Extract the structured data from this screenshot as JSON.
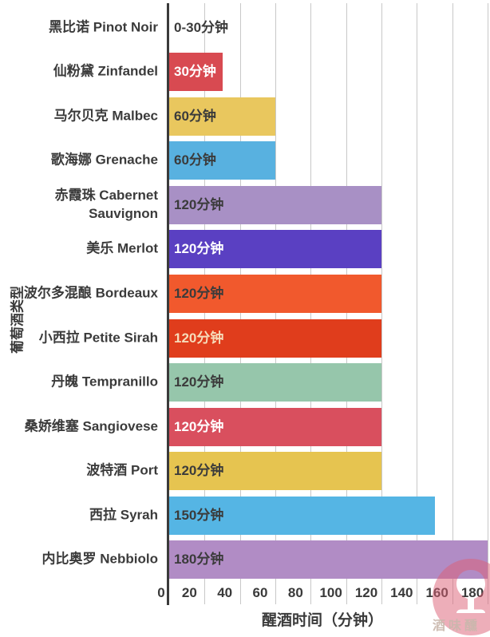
{
  "chart_data": {
    "type": "bar",
    "orientation": "horizontal",
    "xlabel": "醒酒时间（分钟）",
    "ylabel": "葡萄酒类型",
    "xlim": [
      0,
      180
    ],
    "xticks": [
      0,
      20,
      40,
      60,
      80,
      100,
      120,
      140,
      160,
      180
    ],
    "grid": true,
    "legend": "none",
    "bars": [
      {
        "category": "黑比诺 Pinot Noir",
        "value": 0,
        "value_label": "0-30分钟",
        "bar_color": "none",
        "label_color": "#3b3b3b"
      },
      {
        "category": "仙粉黛 Zinfandel",
        "value": 30,
        "value_label": "30分钟",
        "bar_color": "#d84a51",
        "label_color": "#ffffff"
      },
      {
        "category": "马尔贝克 Malbec",
        "value": 60,
        "value_label": "60分钟",
        "bar_color": "#e9c75e",
        "label_color": "#3b3b3b"
      },
      {
        "category": "歌海娜 Grenache",
        "value": 60,
        "value_label": "60分钟",
        "bar_color": "#58b1e0",
        "label_color": "#3b3b3b"
      },
      {
        "category": "赤霞珠 Cabernet\nSauvignon",
        "value": 120,
        "value_label": "120分钟",
        "bar_color": "#a890c5",
        "label_color": "#3b3b3b"
      },
      {
        "category": "美乐 Merlot",
        "value": 120,
        "value_label": "120分钟",
        "bar_color": "#5a40c2",
        "label_color": "#ffffff"
      },
      {
        "category": "波尔多混酿 Bordeaux",
        "value": 120,
        "value_label": "120分钟",
        "bar_color": "#f1592d",
        "label_color": "#3b3b3b"
      },
      {
        "category": "小西拉 Petite Sirah",
        "value": 120,
        "value_label": "120分钟",
        "bar_color": "#e03d1c",
        "label_color": "#f6dcba"
      },
      {
        "category": "丹魄 Tempranillo",
        "value": 120,
        "value_label": "120分钟",
        "bar_color": "#96c6ab",
        "label_color": "#3b3b3b"
      },
      {
        "category": "桑娇维塞 Sangiovese",
        "value": 120,
        "value_label": "120分钟",
        "bar_color": "#d94f5e",
        "label_color": "#ffffff"
      },
      {
        "category": "波特酒 Port",
        "value": 120,
        "value_label": "120分钟",
        "bar_color": "#e6c450",
        "label_color": "#3b3b3b"
      },
      {
        "category": "西拉 Syrah",
        "value": 150,
        "value_label": "150分钟",
        "bar_color": "#55b5e4",
        "label_color": "#3b3b3b"
      },
      {
        "category": "内比奥罗 Nebbiolo",
        "value": 180,
        "value_label": "180分钟",
        "bar_color": "#b18cc5",
        "label_color": "#3b3b3b"
      }
    ]
  },
  "watermark": {
    "text": "酒味醺",
    "icon": "wine-glass-circle-logo",
    "color": "#dd5f75"
  },
  "style": {
    "axis_color": "#3a3a3a",
    "grid_color": "#c8c8c8",
    "text_color": "#3b3b3b",
    "background": "#ffffff"
  }
}
